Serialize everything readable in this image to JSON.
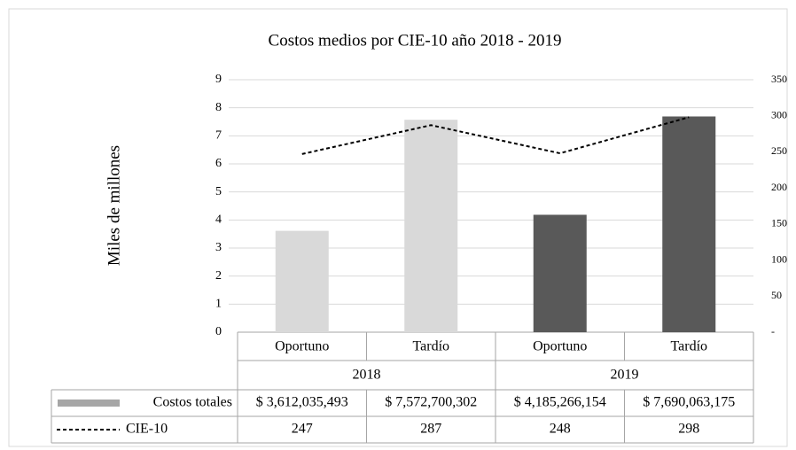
{
  "chart_data": {
    "type": "bar",
    "title": "Costos medios por CIE-10 año 2018 - 2019",
    "ylabel": "Miles de millones",
    "categories": [
      "Oportuno",
      "Tardío",
      "Oportuno",
      "Tardío"
    ],
    "category_groups": [
      "2018",
      "2019"
    ],
    "series": [
      {
        "name": "Costos totales",
        "type": "bar",
        "color": "#a6a6a6",
        "point_colors": [
          "#d9d9d9",
          "#d9d9d9",
          "#595959",
          "#595959"
        ],
        "values": [
          3.612035493,
          7.572700302,
          4.185266154,
          7.690063175
        ],
        "value_labels": [
          "$ 3,612,035,493",
          "$ 7,572,700,302",
          "$ 4,185,266,154",
          "$ 7,690,063,175"
        ]
      },
      {
        "name": "CIE-10",
        "type": "line",
        "axis": "y2",
        "color": "#000000",
        "dashed": true,
        "values": [
          247,
          287,
          248,
          298
        ]
      }
    ],
    "ylim": [
      0,
      9
    ],
    "yticks": [
      0,
      1,
      2,
      3,
      4,
      5,
      6,
      7,
      8,
      9
    ],
    "y2lim": [
      0,
      350
    ],
    "y2ticks": [
      {
        "value": 0,
        "label": "-"
      },
      50,
      100,
      150,
      200,
      250,
      300,
      350
    ],
    "grid": true
  }
}
